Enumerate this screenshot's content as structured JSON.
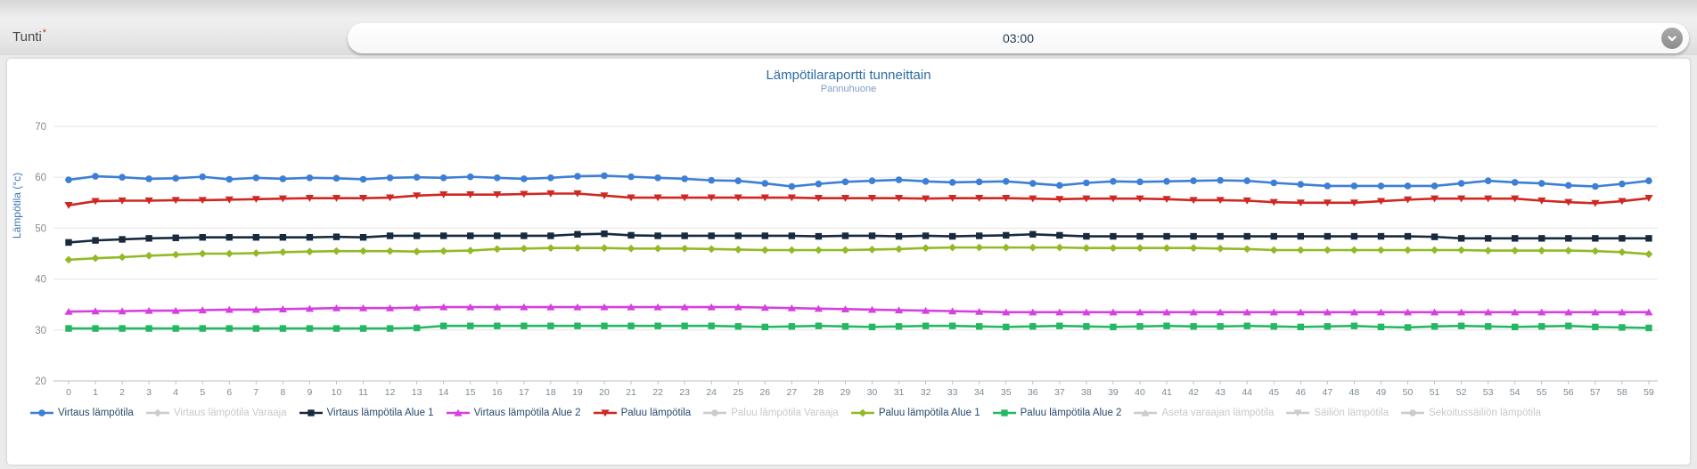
{
  "form": {
    "label": "Tunti",
    "required_mark": "*",
    "value": "03:00",
    "chevron_icon": "chevron-down"
  },
  "colors": {
    "virtaus": "#3d7fd6",
    "paluu": "#cf2823",
    "virtaus_alue1": "#182a3d",
    "virtaus_alue2": "#d63fe0",
    "paluu_alue1": "#92ba26",
    "paluu_alue2": "#25b864",
    "disabled": "#cccccc",
    "grid": "#e5e5e5",
    "axis": "#b9c2c9",
    "x_label": "#7c8a93",
    "y_label": "#8a8a8a",
    "title": "#2d6da3",
    "subtitle": "#7d9ec4"
  },
  "chart_data": {
    "type": "line",
    "title": "Lämpötilaraportti tunneittain",
    "subtitle": "Pannuhuone",
    "xlabel": "",
    "ylabel": "Lämpötila (°c)",
    "ylim": [
      20,
      70
    ],
    "y_ticks": [
      20,
      30,
      40,
      50,
      60,
      70
    ],
    "grid": true,
    "legend_position": "bottom",
    "x": [
      0,
      1,
      2,
      3,
      4,
      5,
      6,
      7,
      8,
      9,
      10,
      11,
      12,
      13,
      14,
      15,
      16,
      17,
      18,
      19,
      20,
      21,
      22,
      23,
      24,
      25,
      26,
      27,
      28,
      29,
      30,
      31,
      32,
      33,
      34,
      35,
      36,
      37,
      38,
      39,
      40,
      41,
      42,
      43,
      44,
      45,
      46,
      47,
      48,
      49,
      50,
      51,
      52,
      53,
      54,
      55,
      56,
      57,
      58,
      59
    ],
    "series": [
      {
        "name": "Virtaus lämpötila",
        "marker": "circle",
        "color": "#3d7fd6",
        "values": [
          59.5,
          60.2,
          60.0,
          59.7,
          59.8,
          60.1,
          59.6,
          59.9,
          59.7,
          59.9,
          59.8,
          59.6,
          59.9,
          60.0,
          59.9,
          60.1,
          59.9,
          59.7,
          59.9,
          60.2,
          60.3,
          60.1,
          59.9,
          59.7,
          59.4,
          59.3,
          58.8,
          58.2,
          58.7,
          59.1,
          59.3,
          59.5,
          59.2,
          59.0,
          59.1,
          59.2,
          58.8,
          58.4,
          58.9,
          59.2,
          59.1,
          59.2,
          59.3,
          59.4,
          59.3,
          58.9,
          58.6,
          58.3,
          58.3,
          58.3,
          58.3,
          58.3,
          58.8,
          59.3,
          59.0,
          58.8,
          58.4,
          58.2,
          58.7,
          59.3
        ]
      },
      {
        "name": "Paluu lämpötila",
        "marker": "triangle-down",
        "color": "#cf2823",
        "values": [
          54.5,
          55.3,
          55.4,
          55.4,
          55.5,
          55.5,
          55.6,
          55.7,
          55.8,
          55.9,
          55.9,
          55.9,
          56.0,
          56.4,
          56.6,
          56.6,
          56.6,
          56.7,
          56.8,
          56.8,
          56.4,
          56.0,
          56.0,
          56.0,
          56.0,
          56.0,
          56.0,
          56.0,
          55.9,
          55.9,
          55.9,
          55.9,
          55.8,
          55.9,
          55.9,
          55.9,
          55.8,
          55.7,
          55.8,
          55.8,
          55.8,
          55.7,
          55.5,
          55.5,
          55.4,
          55.1,
          55.0,
          55.0,
          55.0,
          55.3,
          55.6,
          55.8,
          55.8,
          55.8,
          55.8,
          55.4,
          55.1,
          54.9,
          55.3,
          55.9
        ]
      },
      {
        "name": "Virtaus lämpötila Alue 1",
        "marker": "square",
        "color": "#182a3d",
        "values": [
          47.2,
          47.6,
          47.8,
          48.0,
          48.1,
          48.2,
          48.2,
          48.2,
          48.2,
          48.2,
          48.3,
          48.2,
          48.5,
          48.5,
          48.5,
          48.5,
          48.5,
          48.5,
          48.5,
          48.8,
          48.9,
          48.6,
          48.5,
          48.5,
          48.5,
          48.5,
          48.5,
          48.5,
          48.4,
          48.5,
          48.5,
          48.4,
          48.5,
          48.4,
          48.5,
          48.6,
          48.8,
          48.6,
          48.4,
          48.4,
          48.4,
          48.4,
          48.4,
          48.4,
          48.4,
          48.4,
          48.4,
          48.4,
          48.4,
          48.4,
          48.4,
          48.3,
          48.0,
          48.0,
          48.0,
          48.0,
          48.0,
          48.0,
          48.0,
          48.0
        ]
      },
      {
        "name": "Paluu lämpötila Alue 1",
        "marker": "diamond",
        "color": "#92ba26",
        "values": [
          43.8,
          44.1,
          44.3,
          44.6,
          44.8,
          45.0,
          45.0,
          45.1,
          45.3,
          45.4,
          45.5,
          45.5,
          45.5,
          45.4,
          45.5,
          45.6,
          45.9,
          46.0,
          46.1,
          46.1,
          46.1,
          46.0,
          46.0,
          46.0,
          45.9,
          45.8,
          45.7,
          45.7,
          45.7,
          45.7,
          45.8,
          45.9,
          46.1,
          46.2,
          46.2,
          46.2,
          46.2,
          46.2,
          46.1,
          46.1,
          46.1,
          46.1,
          46.1,
          46.0,
          45.9,
          45.7,
          45.7,
          45.7,
          45.7,
          45.7,
          45.7,
          45.7,
          45.7,
          45.6,
          45.6,
          45.6,
          45.6,
          45.5,
          45.3,
          44.9
        ]
      },
      {
        "name": "Virtaus lämpötila Alue 2",
        "marker": "triangle-up",
        "color": "#d63fe0",
        "values": [
          33.6,
          33.7,
          33.7,
          33.8,
          33.8,
          33.9,
          34.0,
          34.0,
          34.1,
          34.2,
          34.3,
          34.3,
          34.3,
          34.4,
          34.5,
          34.5,
          34.5,
          34.5,
          34.5,
          34.5,
          34.5,
          34.5,
          34.5,
          34.5,
          34.5,
          34.5,
          34.4,
          34.3,
          34.2,
          34.1,
          34.0,
          33.9,
          33.8,
          33.7,
          33.6,
          33.5,
          33.5,
          33.5,
          33.5,
          33.5,
          33.5,
          33.5,
          33.5,
          33.5,
          33.5,
          33.5,
          33.5,
          33.5,
          33.5,
          33.5,
          33.5,
          33.5,
          33.5,
          33.5,
          33.5,
          33.5,
          33.5,
          33.5,
          33.5,
          33.5
        ]
      },
      {
        "name": "Paluu lämpötila Alue 2",
        "marker": "square",
        "color": "#25b864",
        "values": [
          30.3,
          30.3,
          30.3,
          30.3,
          30.3,
          30.3,
          30.3,
          30.3,
          30.3,
          30.3,
          30.3,
          30.3,
          30.3,
          30.4,
          30.8,
          30.8,
          30.8,
          30.8,
          30.8,
          30.8,
          30.8,
          30.8,
          30.8,
          30.8,
          30.8,
          30.7,
          30.6,
          30.7,
          30.8,
          30.7,
          30.6,
          30.7,
          30.8,
          30.8,
          30.7,
          30.6,
          30.7,
          30.8,
          30.7,
          30.6,
          30.7,
          30.8,
          30.7,
          30.7,
          30.8,
          30.7,
          30.6,
          30.7,
          30.8,
          30.6,
          30.5,
          30.7,
          30.8,
          30.7,
          30.6,
          30.7,
          30.8,
          30.6,
          30.5,
          30.4
        ]
      }
    ]
  },
  "legend": {
    "items": [
      {
        "label": "Virtaus lämpötila",
        "marker": "circle",
        "color": "#3d7fd6",
        "enabled": true
      },
      {
        "label": "Virtaus lämpötila Varaaja",
        "marker": "diamond",
        "color": "#cccccc",
        "enabled": false
      },
      {
        "label": "Virtaus lämpötila Alue 1",
        "marker": "square",
        "color": "#182a3d",
        "enabled": true
      },
      {
        "label": "Virtaus lämpötila Alue 2",
        "marker": "triangle-up",
        "color": "#d63fe0",
        "enabled": true
      },
      {
        "label": "Paluu lämpötila",
        "marker": "triangle-down",
        "color": "#cf2823",
        "enabled": true
      },
      {
        "label": "Paluu lämpötila Varaaja",
        "marker": "circle",
        "color": "#cccccc",
        "enabled": false
      },
      {
        "label": "Paluu lämpötila Alue 1",
        "marker": "diamond",
        "color": "#92ba26",
        "enabled": true
      },
      {
        "label": "Paluu lämpötila Alue 2",
        "marker": "square",
        "color": "#25b864",
        "enabled": true
      },
      {
        "label": "Aseta varaajan lämpötila",
        "marker": "triangle-up",
        "color": "#cccccc",
        "enabled": false
      },
      {
        "label": "Säiliön lämpötila",
        "marker": "triangle-down",
        "color": "#cccccc",
        "enabled": false
      },
      {
        "label": "Sekoitussäiliön lämpötila",
        "marker": "circle",
        "color": "#cccccc",
        "enabled": false
      }
    ]
  }
}
